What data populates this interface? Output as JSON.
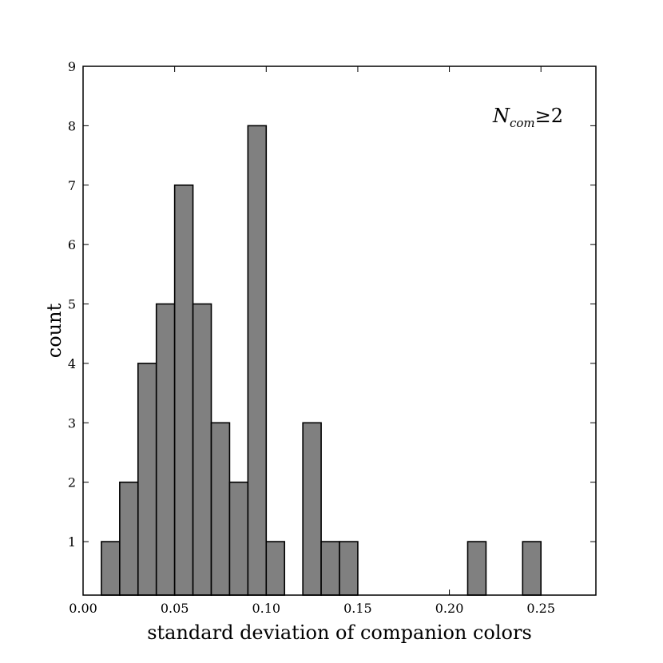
{
  "chart_data": {
    "type": "bar",
    "subtype": "histogram",
    "xlabel": "standard deviation of companion colors",
    "ylabel": "count",
    "xlim": [
      0.0,
      0.28
    ],
    "ylim": [
      0.1,
      9
    ],
    "xticks": [
      "0.00",
      "0.05",
      "0.10",
      "0.15",
      "0.20",
      "0.25"
    ],
    "yticks": [
      "1",
      "2",
      "3",
      "4",
      "5",
      "6",
      "7",
      "8",
      "9"
    ],
    "grid": false,
    "bar_color": "#808080",
    "annotation": {
      "symbol": "N",
      "subscript": "com",
      "relation": "≥2",
      "placement": "top-right"
    },
    "bins": [
      {
        "start": 0.01,
        "end": 0.02,
        "count": 1
      },
      {
        "start": 0.02,
        "end": 0.03,
        "count": 2
      },
      {
        "start": 0.03,
        "end": 0.04,
        "count": 4
      },
      {
        "start": 0.04,
        "end": 0.05,
        "count": 5
      },
      {
        "start": 0.05,
        "end": 0.06,
        "count": 7
      },
      {
        "start": 0.06,
        "end": 0.07,
        "count": 5
      },
      {
        "start": 0.07,
        "end": 0.08,
        "count": 3
      },
      {
        "start": 0.08,
        "end": 0.09,
        "count": 2
      },
      {
        "start": 0.09,
        "end": 0.1,
        "count": 8
      },
      {
        "start": 0.1,
        "end": 0.11,
        "count": 1
      },
      {
        "start": 0.12,
        "end": 0.13,
        "count": 3
      },
      {
        "start": 0.13,
        "end": 0.14,
        "count": 1
      },
      {
        "start": 0.14,
        "end": 0.15,
        "count": 1
      },
      {
        "start": 0.21,
        "end": 0.22,
        "count": 1
      },
      {
        "start": 0.24,
        "end": 0.25,
        "count": 1
      }
    ]
  }
}
